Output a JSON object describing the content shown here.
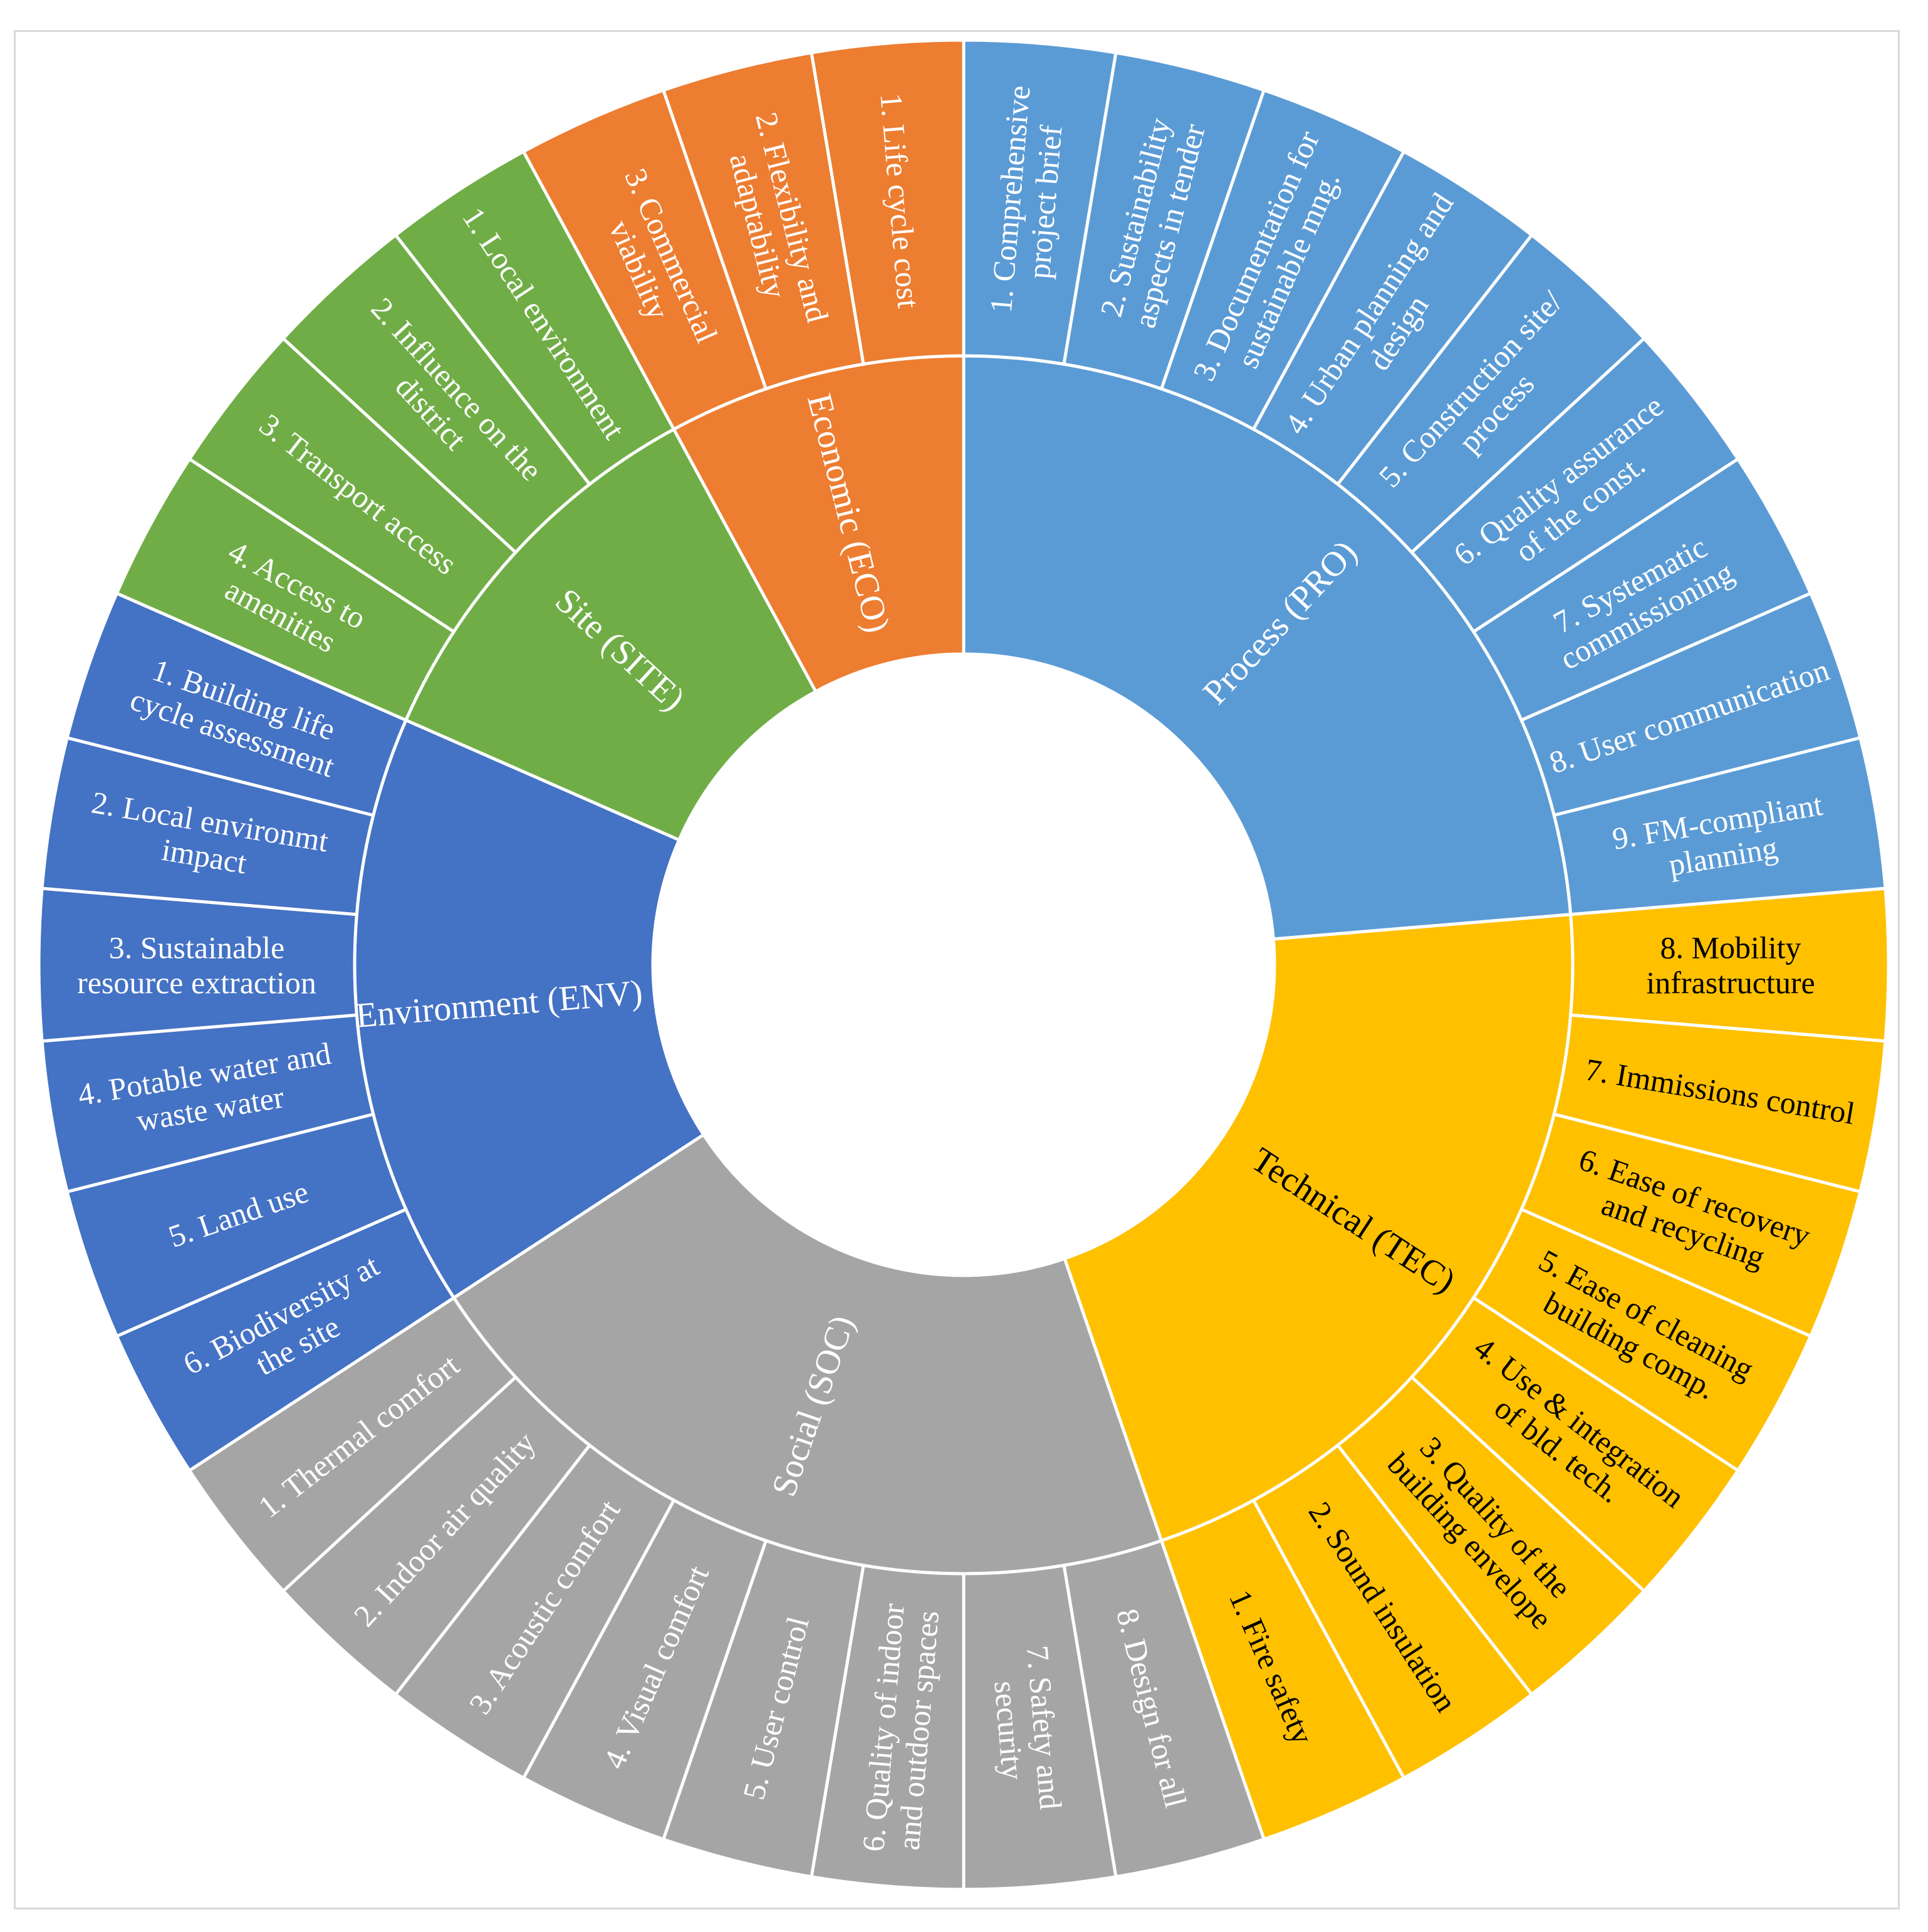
{
  "chart_data": {
    "type": "sunburst",
    "title": "",
    "center_hole": true,
    "categories": [
      {
        "name": "Process (PRO)",
        "color": "#5B9BD5",
        "text_color": "#ffffff",
        "items": [
          "1. Comprehensive project brief",
          "2. Sustainability aspects in tender",
          "3. Documentation for sustainable mng.",
          "4. Urban planning and design",
          "5. Construction site/ process",
          "6. Quality assurance of the const.",
          "7. Systematic commissioning",
          "8. User communication",
          "9. FM-compliant planning"
        ]
      },
      {
        "name": "Technical (TEC)",
        "color": "#FFC000",
        "text_color": "#000000",
        "items": [
          "8. Mobility infrastructure",
          "7. Immissions control",
          "6. Ease of recovery and recycling",
          "5. Ease of cleaning building comp.",
          "4. Use & integration of bld. tech.",
          "3. Quality of the building envelope",
          "2. Sound insulation",
          "1. Fire safety"
        ]
      },
      {
        "name": "Social (SOC)",
        "color": "#A5A5A5",
        "text_color": "#ffffff",
        "items": [
          "8. Design for all",
          "7. Safety and security",
          "6. Quality of indoor and outdoor spaces",
          "5. User control",
          "4. Visual comfort",
          "3. Acoustic comfort",
          "2. Indoor air quality",
          "1. Thermal comfort"
        ]
      },
      {
        "name": "Environment (ENV)",
        "color": "#4472C4",
        "text_color": "#ffffff",
        "items": [
          "6. Biodiversity at the site",
          "5. Land use",
          "4. Potable water and waste water",
          "3. Sustainable resource extraction",
          "2. Local environmt impact",
          "1. Building life cycle assessment"
        ]
      },
      {
        "name": "Site (SITE)",
        "color": "#70AD47",
        "text_color": "#ffffff",
        "items": [
          "4. Access to amenities",
          "3. Transport access",
          "2. Influence on the district",
          "1. Local environment"
        ]
      },
      {
        "name": "Economic (ECO)",
        "color": "#ED7D31",
        "text_color": "#ffffff",
        "items": [
          "3. Commercial viability",
          "2. Flexibility and adaptability",
          "1. Life cycle cost"
        ]
      }
    ]
  }
}
